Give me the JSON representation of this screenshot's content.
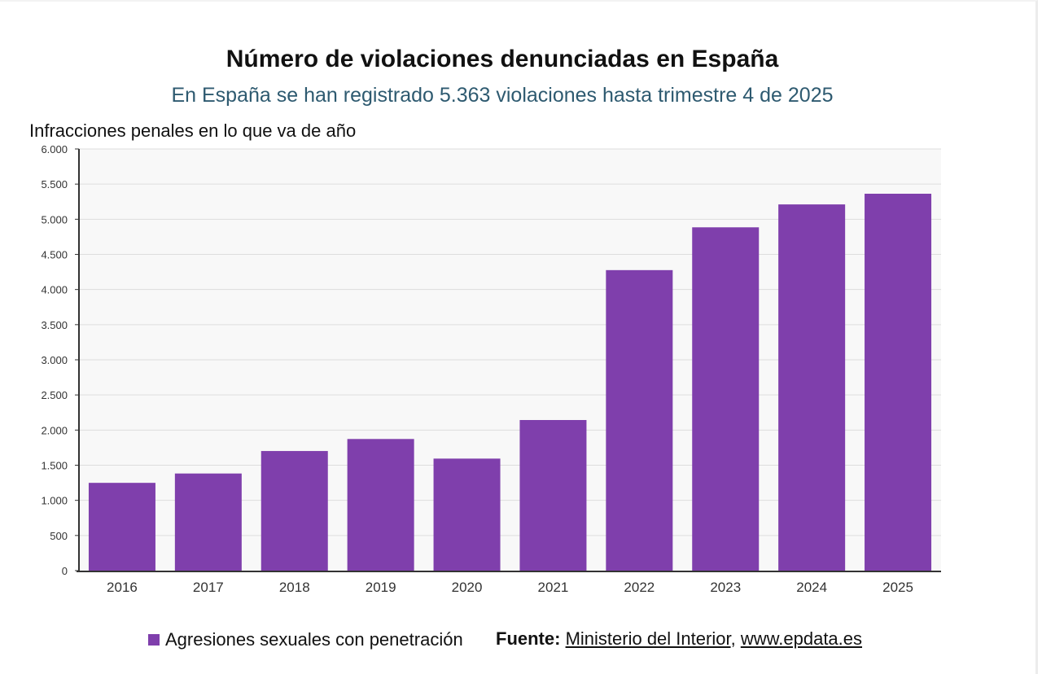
{
  "header": {
    "title": "Número de violaciones denunciadas en España",
    "subtitle": "En España se han registrado 5.363 violaciones hasta trimestre 4 de 2025"
  },
  "chart_data": {
    "type": "bar",
    "title": "Número de violaciones denunciadas en España",
    "subtitle": "En España se han registrado 5.363 violaciones hasta trimestre 4 de 2025",
    "ylabel": "Infracciones penales en lo que va de año",
    "xlabel": "",
    "categories": [
      "2016",
      "2017",
      "2018",
      "2019",
      "2020",
      "2021",
      "2022",
      "2023",
      "2024",
      "2025"
    ],
    "series": [
      {
        "name": "Agresiones sexuales con penetración",
        "values": [
          1249,
          1382,
          1702,
          1873,
          1594,
          2143,
          4276,
          4885,
          5211,
          5363
        ],
        "color": "#7f3fac"
      }
    ],
    "ylim": [
      0,
      6000
    ],
    "yticks": [
      0,
      500,
      1000,
      1500,
      2000,
      2500,
      3000,
      3500,
      4000,
      4500,
      5000,
      5500,
      6000
    ],
    "ytick_labels": [
      "0",
      "500",
      "1.000",
      "1.500",
      "2.000",
      "2.500",
      "3.000",
      "3.500",
      "4.000",
      "4.500",
      "5.000",
      "5.500",
      "6.000"
    ],
    "grid": true,
    "legend_position": "bottom-left",
    "plot_background": "#f8f8f8",
    "grid_color": "#dddddd"
  },
  "legend": {
    "label": "Agresiones sexuales con penetración",
    "color": "#7f3fac"
  },
  "source": {
    "prefix": "Fuente:",
    "link1": "Ministerio del Interior",
    "separator": ",",
    "link2": "www.epdata.es"
  }
}
